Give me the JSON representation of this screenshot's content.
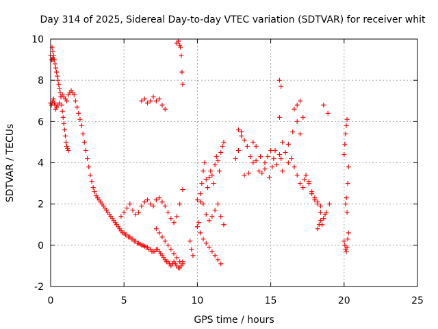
{
  "chart_data": {
    "type": "scatter",
    "title": "Day 314 of 2025, Sidereal Day-to-day VTEC variation (SDTVAR) for receiver whit",
    "xlabel": "GPS time / hours",
    "ylabel": "SDTVAR / TECUs",
    "xlim": [
      0,
      25
    ],
    "ylim": [
      -2,
      10
    ],
    "x_ticks": [
      0,
      5,
      10,
      15,
      20,
      25
    ],
    "x_tick_labels": [
      "0",
      "5",
      "10",
      "15",
      "20",
      "25"
    ],
    "y_ticks": [
      -2,
      0,
      2,
      4,
      6,
      8,
      10
    ],
    "y_tick_labels": [
      "-2",
      "0",
      "2",
      "4",
      "6",
      "8",
      "10"
    ],
    "grid": true,
    "marker": "+",
    "color": "#ff0000",
    "series": [
      {
        "name": "SDTVAR",
        "x": [
          0.0,
          0.05,
          0.1,
          0.15,
          0.2,
          0.25,
          0.3,
          0.35,
          0.4,
          0.5,
          0.6,
          0.7,
          0.8,
          0.9,
          1.0,
          1.1,
          1.2,
          1.3,
          1.4,
          1.5,
          1.6,
          1.7,
          1.8,
          1.9,
          2.0,
          2.1,
          2.2,
          2.3,
          2.4,
          2.5,
          2.6,
          2.7,
          2.8,
          2.9,
          3.0,
          3.1,
          3.2,
          3.3,
          3.4,
          3.5,
          3.6,
          3.7,
          3.8,
          3.9,
          4.0,
          4.1,
          4.2,
          4.3,
          4.4,
          4.5,
          4.6,
          4.7,
          4.8,
          4.9,
          5.0,
          5.1,
          5.2,
          5.3,
          5.4,
          5.5,
          5.6,
          5.7,
          5.8,
          5.9,
          6.0,
          6.1,
          6.2,
          6.3,
          6.4,
          6.5,
          6.6,
          6.7,
          6.8,
          6.9,
          7.0,
          7.1,
          7.2,
          7.3,
          7.4,
          7.5,
          7.6,
          7.7,
          7.8,
          7.9,
          8.0,
          8.1,
          8.2,
          8.3,
          8.4,
          8.5,
          8.6,
          8.7,
          8.8,
          8.9,
          9.0,
          0.1,
          0.15,
          0.2,
          0.25,
          0.3,
          0.35,
          0.4,
          0.45,
          0.5,
          0.55,
          0.6,
          0.65,
          0.7,
          0.75,
          0.8,
          0.85,
          0.9,
          0.95,
          1.0,
          1.05,
          1.1,
          1.15,
          1.2,
          0.0,
          0.05,
          0.1,
          0.15,
          0.2,
          6.2,
          6.4,
          6.6,
          6.8,
          7.0,
          7.2,
          7.4,
          7.6,
          7.8,
          8.6,
          8.7,
          8.8,
          8.85,
          8.9,
          8.95,
          9.0,
          4.8,
          5.0,
          5.2,
          5.4,
          5.6,
          5.8,
          6.0,
          6.2,
          6.4,
          6.6,
          6.8,
          7.0,
          7.2,
          7.4,
          7.6,
          7.8,
          8.0,
          8.2,
          8.4,
          8.6,
          8.8,
          9.0,
          7.2,
          7.4,
          7.6,
          7.8,
          8.0,
          8.2,
          8.4,
          8.6,
          8.8,
          9.0,
          9.5,
          9.6,
          9.7,
          10.0,
          10.1,
          10.2,
          10.3,
          10.4,
          10.5,
          10.6,
          10.7,
          10.8,
          10.9,
          11.0,
          11.1,
          11.2,
          11.3,
          11.4,
          11.5,
          11.6,
          11.7,
          11.8,
          10.2,
          10.4,
          10.6,
          10.8,
          11.0,
          11.2,
          11.4,
          11.6,
          10.0,
          10.2,
          10.4,
          10.6,
          10.8,
          11.0,
          11.2,
          11.4,
          11.6,
          11.8,
          12.6,
          12.8,
          13.0,
          13.2,
          13.4,
          13.6,
          13.8,
          14.0,
          14.2,
          14.4,
          14.6,
          14.8,
          15.0,
          15.2,
          15.4,
          15.6,
          15.8,
          16.0,
          16.2,
          16.4,
          16.6,
          16.8,
          17.0,
          17.2,
          17.4,
          17.6,
          17.8,
          18.0,
          18.2,
          18.4,
          18.6,
          18.8,
          19.0,
          12.8,
          13.0,
          13.2,
          13.5,
          13.8,
          14.0,
          14.3,
          14.6,
          14.9,
          15.1,
          15.3,
          15.6,
          15.7,
          15.8,
          16.2,
          16.5,
          16.8,
          17.0,
          17.3,
          17.6,
          17.8,
          18.0,
          18.2,
          18.4,
          15.6,
          15.7,
          16.6,
          16.8,
          17.0,
          17.2,
          18.6,
          18.9,
          18.2,
          18.3,
          18.4,
          18.5,
          18.6,
          18.7,
          20.0,
          20.05,
          20.1,
          20.15,
          20.2,
          20.25,
          20.3,
          20.0,
          20.05,
          20.1,
          20.15,
          20.2,
          20.25,
          20.3,
          20.1,
          20.15,
          20.2
        ],
        "y": [
          6.9,
          6.8,
          6.9,
          7.0,
          7.1,
          6.9,
          6.8,
          6.6,
          6.7,
          6.8,
          6.9,
          7.2,
          7.3,
          7.2,
          7.1,
          7.0,
          7.3,
          7.4,
          7.5,
          7.4,
          7.3,
          7.0,
          6.7,
          6.4,
          6.1,
          5.8,
          5.4,
          5.0,
          4.6,
          4.2,
          3.8,
          3.4,
          3.1,
          2.8,
          2.6,
          2.4,
          2.3,
          2.2,
          2.1,
          2.0,
          1.9,
          1.8,
          1.7,
          1.6,
          1.5,
          1.4,
          1.3,
          1.2,
          1.1,
          1.0,
          0.9,
          0.8,
          0.7,
          0.6,
          0.6,
          0.5,
          0.5,
          0.4,
          0.4,
          0.3,
          0.3,
          0.2,
          0.2,
          0.1,
          0.1,
          0.05,
          0.0,
          0.0,
          -0.05,
          -0.1,
          -0.1,
          -0.2,
          -0.2,
          -0.3,
          -0.3,
          -0.3,
          -0.2,
          -0.2,
          -0.3,
          -0.4,
          -0.5,
          -0.6,
          -0.7,
          -0.8,
          -0.8,
          -0.9,
          -1.0,
          -0.9,
          -0.8,
          -0.9,
          -1.0,
          -1.1,
          -1.1,
          -1.0,
          -0.8,
          9.6,
          9.4,
          9.2,
          9.0,
          8.8,
          8.6,
          8.4,
          8.2,
          8.0,
          7.8,
          7.6,
          7.4,
          7.2,
          6.8,
          6.5,
          6.2,
          5.9,
          5.6,
          5.3,
          5.0,
          4.8,
          4.7,
          4.6,
          9.2,
          9.0,
          9.0,
          9.1,
          9.0,
          7.0,
          7.1,
          6.9,
          7.0,
          7.2,
          7.0,
          7.1,
          6.8,
          6.6,
          9.8,
          9.9,
          9.7,
          9.6,
          9.2,
          8.4,
          7.8,
          1.4,
          1.6,
          1.8,
          2.0,
          1.7,
          1.5,
          1.6,
          1.9,
          2.1,
          2.2,
          2.0,
          1.9,
          2.2,
          2.3,
          2.1,
          1.9,
          1.6,
          1.3,
          1.1,
          1.4,
          2.0,
          2.7,
          0.8,
          0.6,
          0.4,
          0.2,
          0.0,
          -0.2,
          -0.4,
          -0.6,
          -0.8,
          -0.9,
          0.2,
          -0.2,
          -0.5,
          0.9,
          1.1,
          2.1,
          3.0,
          3.6,
          4.0,
          3.2,
          2.8,
          3.3,
          3.6,
          3.4,
          3.0,
          3.9,
          4.3,
          4.1,
          3.6,
          4.5,
          4.8,
          5.0,
          0.6,
          0.3,
          0.1,
          -0.1,
          -0.3,
          -0.5,
          -0.7,
          -0.9,
          2.2,
          2.5,
          2.0,
          1.5,
          1.2,
          1.4,
          1.7,
          2.0,
          1.4,
          1.0,
          4.2,
          4.6,
          5.5,
          5.1,
          4.8,
          4.3,
          4.0,
          4.1,
          3.6,
          3.5,
          4.0,
          4.3,
          4.6,
          4.2,
          3.9,
          4.4,
          5.0,
          4.5,
          4.0,
          4.2,
          3.8,
          3.4,
          3.0,
          2.8,
          3.4,
          3.1,
          2.6,
          2.3,
          2.0,
          1.6,
          1.3,
          1.6,
          2.0,
          5.6,
          5.3,
          3.4,
          3.5,
          5.0,
          4.8,
          4.3,
          3.7,
          3.3,
          3.8,
          4.6,
          6.2,
          4.2,
          3.6,
          4.9,
          5.5,
          6.0,
          5.4,
          3.2,
          3.0,
          2.5,
          2.2,
          2.1,
          1.9,
          8.0,
          7.7,
          6.6,
          6.8,
          7.0,
          6.2,
          6.8,
          6.4,
          0.8,
          1.0,
          1.2,
          1.0,
          1.3,
          1.5,
          0.2,
          0.0,
          -0.2,
          -0.3,
          -0.1,
          0.3,
          0.6,
          4.4,
          4.9,
          5.4,
          5.8,
          6.1,
          3.0,
          3.8,
          2.0,
          2.3,
          1.6
        ]
      }
    ]
  }
}
